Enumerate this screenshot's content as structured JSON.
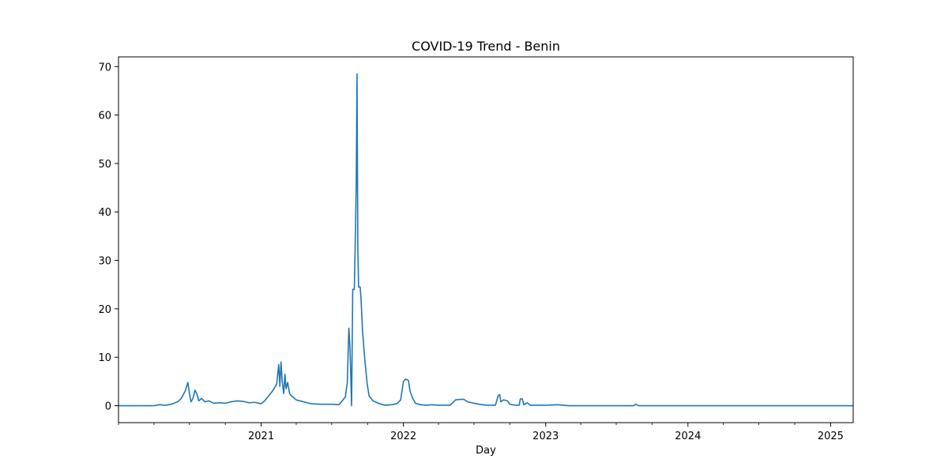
{
  "chart_data": {
    "type": "line",
    "title": "COVID-19 Trend - Benin",
    "xlabel": "Day",
    "ylabel": "",
    "xlim": [
      "2020-01-01",
      "2025-02-28"
    ],
    "ylim": [
      -3.5,
      72
    ],
    "grid": false,
    "legend": "none",
    "x_ticks": [
      {
        "date": "2021-01-01",
        "label": "2021"
      },
      {
        "date": "2022-01-01",
        "label": "2022"
      },
      {
        "date": "2023-01-01",
        "label": "2023"
      },
      {
        "date": "2024-01-01",
        "label": "2024"
      },
      {
        "date": "2025-01-01",
        "label": "2025"
      }
    ],
    "y_ticks": [
      {
        "value": 0,
        "label": "0"
      },
      {
        "value": 10,
        "label": "10"
      },
      {
        "value": 20,
        "label": "20"
      },
      {
        "value": 30,
        "label": "30"
      },
      {
        "value": 40,
        "label": "40"
      },
      {
        "value": 50,
        "label": "50"
      },
      {
        "value": 60,
        "label": "60"
      },
      {
        "value": 70,
        "label": "70"
      }
    ],
    "series": [
      {
        "color": "#1f77b4",
        "points": [
          [
            "2020-01-01",
            0
          ],
          [
            "2020-04-01",
            0
          ],
          [
            "2020-04-15",
            0.2
          ],
          [
            "2020-05-01",
            0.1
          ],
          [
            "2020-05-15",
            0.3
          ],
          [
            "2020-06-01",
            0.8
          ],
          [
            "2020-06-10",
            1.5
          ],
          [
            "2020-06-20",
            3
          ],
          [
            "2020-06-27",
            4.8
          ],
          [
            "2020-07-01",
            2.5
          ],
          [
            "2020-07-05",
            0.8
          ],
          [
            "2020-07-10",
            1.5
          ],
          [
            "2020-07-15",
            3.2
          ],
          [
            "2020-07-20",
            2.5
          ],
          [
            "2020-07-25",
            1
          ],
          [
            "2020-08-01",
            1.5
          ],
          [
            "2020-08-10",
            0.8
          ],
          [
            "2020-08-20",
            1
          ],
          [
            "2020-09-01",
            0.5
          ],
          [
            "2020-09-15",
            0.6
          ],
          [
            "2020-10-01",
            0.5
          ],
          [
            "2020-10-15",
            0.8
          ],
          [
            "2020-11-01",
            1
          ],
          [
            "2020-11-15",
            0.9
          ],
          [
            "2020-12-01",
            0.6
          ],
          [
            "2020-12-15",
            0.7
          ],
          [
            "2021-01-01",
            0.4
          ],
          [
            "2021-01-10",
            1
          ],
          [
            "2021-01-20",
            2
          ],
          [
            "2021-01-30",
            3
          ],
          [
            "2021-02-10",
            4.5
          ],
          [
            "2021-02-15",
            8.5
          ],
          [
            "2021-02-18",
            4
          ],
          [
            "2021-02-21",
            9
          ],
          [
            "2021-02-24",
            5
          ],
          [
            "2021-02-28",
            2.5
          ],
          [
            "2021-03-03",
            6.5
          ],
          [
            "2021-03-06",
            3.5
          ],
          [
            "2021-03-10",
            4.8
          ],
          [
            "2021-03-15",
            2.5
          ],
          [
            "2021-03-20",
            2
          ],
          [
            "2021-04-01",
            1.2
          ],
          [
            "2021-04-20",
            0.8
          ],
          [
            "2021-05-10",
            0.4
          ],
          [
            "2021-06-01",
            0.3
          ],
          [
            "2021-07-01",
            0.3
          ],
          [
            "2021-07-20",
            0.2
          ],
          [
            "2021-07-28",
            1
          ],
          [
            "2021-08-05",
            1.8
          ],
          [
            "2021-08-10",
            4.8
          ],
          [
            "2021-08-14",
            16
          ],
          [
            "2021-08-17",
            12
          ],
          [
            "2021-08-21",
            0
          ],
          [
            "2021-08-24",
            24
          ],
          [
            "2021-08-28",
            24
          ],
          [
            "2021-08-31",
            36
          ],
          [
            "2021-09-02",
            46
          ],
          [
            "2021-09-04",
            68.5
          ],
          [
            "2021-09-06",
            33
          ],
          [
            "2021-09-08",
            24.5
          ],
          [
            "2021-09-12",
            24.5
          ],
          [
            "2021-09-14",
            22.5
          ],
          [
            "2021-09-18",
            15.5
          ],
          [
            "2021-09-24",
            9.5
          ],
          [
            "2021-09-30",
            4.5
          ],
          [
            "2021-10-05",
            2
          ],
          [
            "2021-10-15",
            1
          ],
          [
            "2021-11-01",
            0.4
          ],
          [
            "2021-11-15",
            0.1
          ],
          [
            "2021-12-01",
            0.2
          ],
          [
            "2021-12-15",
            0.4
          ],
          [
            "2021-12-25",
            1.2
          ],
          [
            "2022-01-01",
            5
          ],
          [
            "2022-01-07",
            5.5
          ],
          [
            "2022-01-14",
            5.2
          ],
          [
            "2022-01-18",
            3
          ],
          [
            "2022-01-25",
            1.5
          ],
          [
            "2022-02-01",
            0.5
          ],
          [
            "2022-02-15",
            0.2
          ],
          [
            "2022-03-01",
            0.1
          ],
          [
            "2022-03-15",
            0.2
          ],
          [
            "2022-04-01",
            0.1
          ],
          [
            "2022-05-01",
            0.1
          ],
          [
            "2022-05-15",
            1.2
          ],
          [
            "2022-05-25",
            1.3
          ],
          [
            "2022-06-05",
            1.3
          ],
          [
            "2022-06-15",
            0.8
          ],
          [
            "2022-07-01",
            0.5
          ],
          [
            "2022-07-15",
            0.3
          ],
          [
            "2022-08-01",
            0.1
          ],
          [
            "2022-08-25",
            0.1
          ],
          [
            "2022-09-01",
            2
          ],
          [
            "2022-09-05",
            2.3
          ],
          [
            "2022-09-08",
            0.8
          ],
          [
            "2022-09-15",
            1.2
          ],
          [
            "2022-09-25",
            1
          ],
          [
            "2022-10-01",
            0.3
          ],
          [
            "2022-10-15",
            0.1
          ],
          [
            "2022-10-25",
            0.1
          ],
          [
            "2022-10-28",
            1.4
          ],
          [
            "2022-11-02",
            1.4
          ],
          [
            "2022-11-06",
            0.2
          ],
          [
            "2022-11-15",
            0.6
          ],
          [
            "2022-11-22",
            0.1
          ],
          [
            "2023-01-01",
            0.1
          ],
          [
            "2023-02-01",
            0.2
          ],
          [
            "2023-03-01",
            0
          ],
          [
            "2023-06-01",
            0
          ],
          [
            "2023-08-15",
            0
          ],
          [
            "2023-08-20",
            0.3
          ],
          [
            "2023-08-28",
            0
          ],
          [
            "2024-01-01",
            0
          ],
          [
            "2025-02-28",
            0
          ]
        ]
      }
    ]
  }
}
